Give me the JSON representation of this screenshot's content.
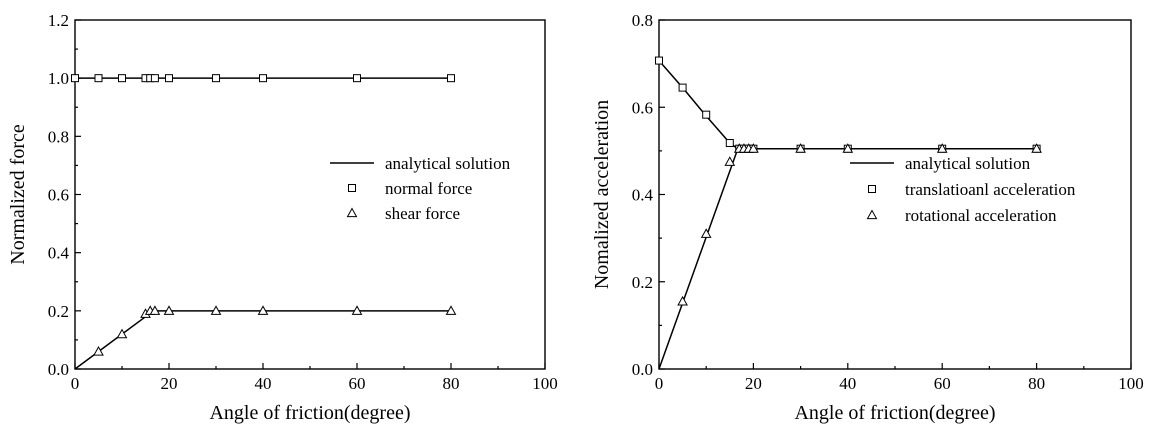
{
  "chart_data": [
    {
      "type": "line",
      "xlabel": "Angle of friction(degree)",
      "ylabel": "Normalized force",
      "xlim": [
        0,
        100
      ],
      "ylim": [
        0,
        1.2
      ],
      "xticks": [
        0,
        20,
        40,
        60,
        80,
        100
      ],
      "yticks": [
        0.0,
        0.2,
        0.4,
        0.6,
        0.8,
        1.0,
        1.2
      ],
      "ytick_format": 1,
      "legend_position": "center-right",
      "legend": [
        {
          "label": "analytical solution",
          "symbol": "line"
        },
        {
          "label": "normal force",
          "symbol": "square"
        },
        {
          "label": "shear force",
          "symbol": "triangle"
        }
      ],
      "lines": [
        {
          "x": [
            0,
            80
          ],
          "y": [
            1.0,
            1.0
          ]
        },
        {
          "x": [
            0,
            16.7,
            80
          ],
          "y": [
            0.0,
            0.2,
            0.2
          ]
        }
      ],
      "series": [
        {
          "symbol": "square",
          "x": [
            0,
            5,
            10,
            15,
            16,
            17,
            20,
            30,
            40,
            60,
            80
          ],
          "y": [
            1.0,
            1.0,
            1.0,
            1.0,
            1.0,
            1.0,
            1.0,
            1.0,
            1.0,
            1.0,
            1.0
          ]
        },
        {
          "symbol": "triangle",
          "x": [
            5,
            10,
            15,
            16,
            17,
            20,
            30,
            40,
            60,
            80
          ],
          "y": [
            0.06,
            0.12,
            0.19,
            0.2,
            0.2,
            0.2,
            0.2,
            0.2,
            0.2,
            0.2
          ]
        }
      ]
    },
    {
      "type": "line",
      "xlabel": "Angle of friction(degree)",
      "ylabel": "Nomalized acceleration",
      "xlim": [
        0,
        100
      ],
      "ylim": [
        0,
        0.8
      ],
      "xticks": [
        0,
        20,
        40,
        60,
        80,
        100
      ],
      "yticks": [
        0.0,
        0.2,
        0.4,
        0.6,
        0.8
      ],
      "ytick_format": 1,
      "legend_position": "center-right",
      "legend": [
        {
          "label": "analytical solution",
          "symbol": "line"
        },
        {
          "label": "translatioanl acceleration",
          "symbol": "square"
        },
        {
          "label": "rotational acceleration",
          "symbol": "triangle"
        }
      ],
      "lines": [
        {
          "x": [
            0,
            5,
            10,
            15,
            16.7,
            80
          ],
          "y": [
            0.707,
            0.645,
            0.58,
            0.518,
            0.505,
            0.505
          ]
        },
        {
          "x": [
            0,
            16.7,
            80
          ],
          "y": [
            0.0,
            0.505,
            0.505
          ]
        }
      ],
      "series": [
        {
          "symbol": "square",
          "x": [
            0,
            5,
            10,
            15,
            17,
            18,
            19,
            20,
            30,
            40,
            60,
            80
          ],
          "y": [
            0.707,
            0.645,
            0.583,
            0.518,
            0.505,
            0.505,
            0.505,
            0.505,
            0.505,
            0.505,
            0.505,
            0.505
          ]
        },
        {
          "symbol": "triangle",
          "x": [
            5,
            10,
            15,
            17,
            18,
            19,
            20,
            30,
            40,
            60,
            80
          ],
          "y": [
            0.155,
            0.31,
            0.475,
            0.505,
            0.505,
            0.505,
            0.505,
            0.505,
            0.505,
            0.505,
            0.505
          ]
        }
      ]
    }
  ]
}
